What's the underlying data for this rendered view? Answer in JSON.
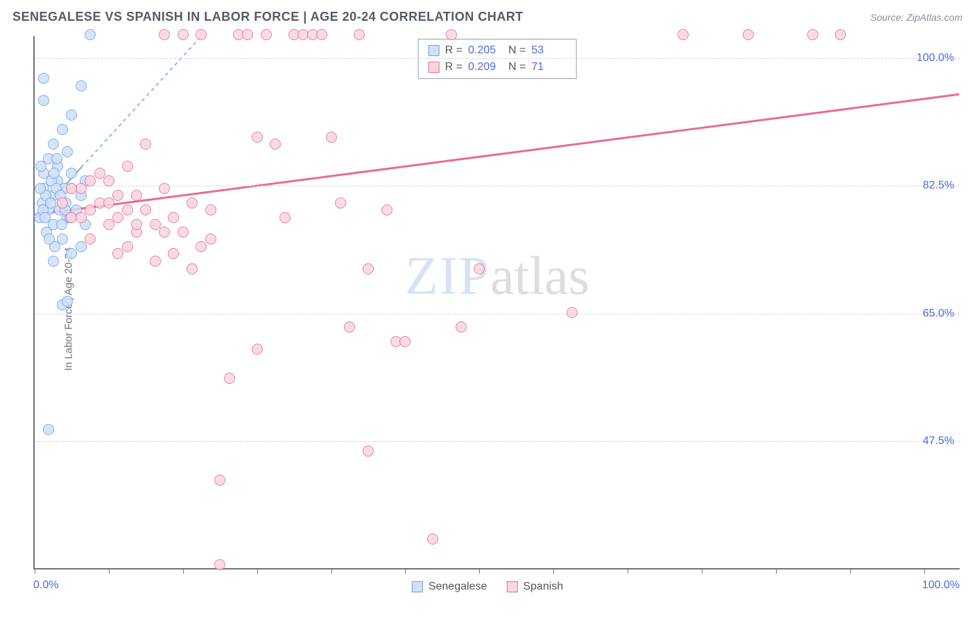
{
  "title": "SENEGALESE VS SPANISH IN LABOR FORCE | AGE 20-24 CORRELATION CHART",
  "source": "Source: ZipAtlas.com",
  "ylabel": "In Labor Force | Age 20-24",
  "watermark": {
    "part1": "ZIP",
    "part2": "atlas"
  },
  "chart": {
    "type": "scatter",
    "background_color": "#ffffff",
    "grid_color": "#d0d4da",
    "axis_color": "#6b7280",
    "tick_label_color": "#4a6be0",
    "xlim": [
      0,
      100
    ],
    "ylim": [
      30,
      103
    ],
    "xticks_pct": [
      0,
      8,
      16,
      24,
      32,
      40,
      48,
      56,
      64,
      72,
      80,
      88,
      96
    ],
    "yticks": [
      {
        "value": 47.5,
        "label": "47.5%"
      },
      {
        "value": 65.0,
        "label": "65.0%"
      },
      {
        "value": 82.5,
        "label": "82.5%"
      },
      {
        "value": 100.0,
        "label": "100.0%"
      }
    ],
    "xaxis_min_label": "0.0%",
    "xaxis_max_label": "100.0%",
    "marker_radius": 8,
    "series": [
      {
        "name": "Senegalese",
        "fill": "#cfe0f7",
        "stroke": "#6fa0e8",
        "r_value": "0.205",
        "n_value": "53",
        "trend": {
          "x1": 0,
          "y1": 78,
          "x2": 5,
          "y2": 85,
          "dash_x2": 18,
          "dash_y2": 103,
          "width": 2
        },
        "points": [
          [
            0.5,
            78
          ],
          [
            0.8,
            80
          ],
          [
            1,
            82
          ],
          [
            1,
            84
          ],
          [
            1.5,
            79
          ],
          [
            1.5,
            86
          ],
          [
            2,
            81
          ],
          [
            2,
            88
          ],
          [
            2,
            77
          ],
          [
            2.5,
            83
          ],
          [
            2.5,
            85
          ],
          [
            3,
            80
          ],
          [
            3,
            90
          ],
          [
            3,
            75
          ],
          [
            3.5,
            78
          ],
          [
            3.5,
            87
          ],
          [
            4,
            82
          ],
          [
            4,
            73
          ],
          [
            4,
            84
          ],
          [
            4.5,
            79
          ],
          [
            5,
            74
          ],
          [
            5,
            81
          ],
          [
            5,
            96
          ],
          [
            5.5,
            77
          ],
          [
            5.5,
            83
          ],
          [
            6,
            103
          ],
          [
            1,
            97
          ],
          [
            1.5,
            49
          ],
          [
            3,
            66
          ],
          [
            3.5,
            66.5
          ],
          [
            2,
            72
          ],
          [
            4,
            92
          ],
          [
            1,
            94
          ],
          [
            1.3,
            76
          ],
          [
            2.2,
            74
          ],
          [
            0.7,
            85
          ],
          [
            1.8,
            83
          ],
          [
            2.7,
            79
          ],
          [
            3.2,
            82
          ],
          [
            3.8,
            78
          ],
          [
            1.2,
            81
          ],
          [
            2.4,
            86
          ],
          [
            0.9,
            79
          ],
          [
            1.6,
            75
          ],
          [
            2.1,
            84
          ],
          [
            2.9,
            77
          ],
          [
            3.4,
            80
          ],
          [
            0.6,
            82
          ],
          [
            1.1,
            78
          ],
          [
            1.7,
            80
          ],
          [
            2.3,
            82
          ],
          [
            2.8,
            81
          ],
          [
            3.3,
            79
          ]
        ]
      },
      {
        "name": "Spanish",
        "fill": "#f9d5e0",
        "stroke": "#e86b95",
        "r_value": "0.209",
        "n_value": "71",
        "trend": {
          "x1": 0,
          "y1": 78.5,
          "x2": 100,
          "y2": 95,
          "width": 3
        },
        "points": [
          [
            3,
            80
          ],
          [
            4,
            78
          ],
          [
            5,
            82
          ],
          [
            6,
            79
          ],
          [
            7,
            84
          ],
          [
            8,
            77
          ],
          [
            8,
            83
          ],
          [
            9,
            81
          ],
          [
            10,
            74
          ],
          [
            10,
            85
          ],
          [
            11,
            76
          ],
          [
            12,
            79
          ],
          [
            13,
            72
          ],
          [
            14,
            103
          ],
          [
            14,
            82
          ],
          [
            15,
            78
          ],
          [
            16,
            103
          ],
          [
            17,
            71
          ],
          [
            18,
            103
          ],
          [
            19,
            75
          ],
          [
            20,
            30.5
          ],
          [
            20,
            42
          ],
          [
            21,
            56
          ],
          [
            22,
            103
          ],
          [
            23,
            103
          ],
          [
            24,
            60
          ],
          [
            24,
            89
          ],
          [
            25,
            103
          ],
          [
            26,
            88
          ],
          [
            27,
            78
          ],
          [
            28,
            103
          ],
          [
            29,
            103
          ],
          [
            30,
            103
          ],
          [
            31,
            103
          ],
          [
            32,
            89
          ],
          [
            33,
            80
          ],
          [
            34,
            63
          ],
          [
            35,
            103
          ],
          [
            36,
            46
          ],
          [
            36,
            71
          ],
          [
            38,
            79
          ],
          [
            39,
            61
          ],
          [
            40,
            61
          ],
          [
            43,
            34
          ],
          [
            45,
            103
          ],
          [
            46,
            63
          ],
          [
            48,
            71
          ],
          [
            58,
            65
          ],
          [
            70,
            103
          ],
          [
            77,
            103
          ],
          [
            84,
            103
          ],
          [
            87,
            103
          ],
          [
            12,
            88
          ],
          [
            15,
            73
          ],
          [
            6,
            75
          ],
          [
            9,
            73
          ],
          [
            11,
            81
          ],
          [
            7,
            80
          ],
          [
            13,
            77
          ],
          [
            16,
            76
          ],
          [
            5,
            78
          ],
          [
            8,
            80
          ],
          [
            10,
            79
          ],
          [
            18,
            74
          ],
          [
            19,
            79
          ],
          [
            14,
            76
          ],
          [
            17,
            80
          ],
          [
            4,
            82
          ],
          [
            6,
            83
          ],
          [
            9,
            78
          ],
          [
            11,
            77
          ]
        ]
      }
    ],
    "legend_bottom": [
      {
        "label": "Senegalese",
        "fill": "#cfe0f7",
        "stroke": "#6fa0e8"
      },
      {
        "label": "Spanish",
        "fill": "#f9d5e0",
        "stroke": "#e86b95"
      }
    ]
  }
}
